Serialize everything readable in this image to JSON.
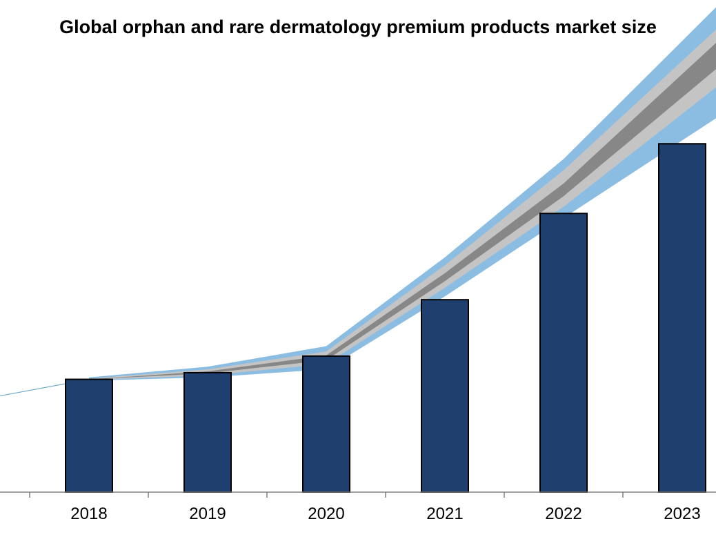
{
  "chart_data": {
    "type": "bar",
    "title": "Global orphan and rare dermatology premium products market size",
    "xlabel": "",
    "ylabel": "",
    "categories": [
      "2018",
      "2019",
      "2020",
      "2021",
      "2022",
      "2023"
    ],
    "values": [
      17,
      18,
      20.5,
      29,
      42,
      52.5
    ],
    "ylim": [
      0,
      70
    ],
    "grid": false,
    "legend": "none",
    "trend": {
      "leading_start_value": 14.5,
      "upper_outer": [
        17.3,
        18.9,
        22.0,
        35.4,
        50.2,
        68.0
      ],
      "upper_inner": [
        17.1,
        18.5,
        21.2,
        34.2,
        48.5,
        65.0
      ],
      "mid_upper": [
        17.0,
        18.2,
        20.6,
        33.0,
        46.5,
        63.0
      ],
      "mid_lower": [
        17.0,
        17.9,
        19.9,
        31.8,
        44.6,
        59.5
      ],
      "lower_inner": [
        16.9,
        17.6,
        19.3,
        30.8,
        43.0,
        57.0
      ],
      "lower_outer": [
        16.8,
        17.3,
        18.5,
        29.5,
        41.3,
        53.0
      ]
    },
    "colors": {
      "bar_fill": "#1f3f6e",
      "bar_stroke": "#000000",
      "band_outer": "#8bbde3",
      "band_inner": "#c4c4c4",
      "band_core": "#878787",
      "trend_line": "#6fa8c9",
      "axis": "#7f7f7f"
    }
  }
}
